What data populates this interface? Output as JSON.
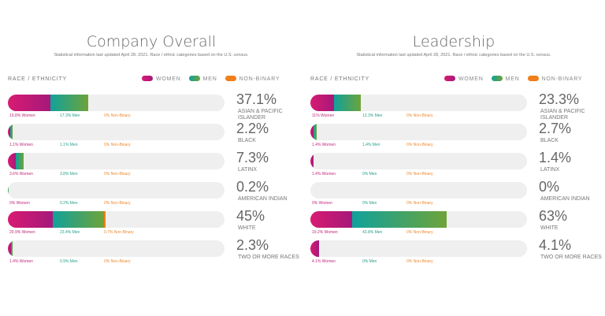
{
  "legend": {
    "header": "RACE / ETHNICITY",
    "women": "WOMEN",
    "men": "MEN",
    "nonbinary": "NON-BINARY",
    "colors": {
      "women": "#c2187a",
      "men": "#2aa37a",
      "nonbinary": "#f07f1a"
    }
  },
  "chart_data": [
    {
      "type": "bar",
      "title": "Company Overall",
      "subtitle": "Statistical information last updated April 28, 2021. Race / ethnic categories based on the U.S. census.",
      "rows": [
        {
          "total": "37.1%",
          "category": "ASIAN & PACIFIC ISLANDER",
          "women": 19.8,
          "men": 17.3,
          "nonbinary": 0,
          "women_label": "19.8% Women",
          "men_label": "17.3% Men",
          "nonbinary_label": "0% Non-Binary"
        },
        {
          "total": "2.2%",
          "category": "BLACK",
          "women": 1.1,
          "men": 1.1,
          "nonbinary": 0,
          "women_label": "1.1% Women",
          "men_label": "1.1% Men",
          "nonbinary_label": "0% Non-Binary"
        },
        {
          "total": "7.3%",
          "category": "LATINX",
          "women": 3.6,
          "men": 3.8,
          "nonbinary": 0,
          "women_label": "3.6% Women",
          "men_label": "3.8% Men",
          "nonbinary_label": "0% Non-Binary"
        },
        {
          "total": "0.2%",
          "category": "AMERICAN INDIAN",
          "women": 0,
          "men": 0.2,
          "nonbinary": 0,
          "women_label": "0% Women",
          "men_label": "0.2% Men",
          "nonbinary_label": "0% Non-Binary"
        },
        {
          "total": "45%",
          "category": "WHITE",
          "women": 20.9,
          "men": 23.4,
          "nonbinary": 0.7,
          "women_label": "20.9% Women",
          "men_label": "23.4% Men",
          "nonbinary_label": "0.7% Non-Binary"
        },
        {
          "total": "2.3%",
          "category": "TWO OR MORE RACES",
          "women": 1.4,
          "men": 0.9,
          "nonbinary": 0,
          "women_label": "1.4% Women",
          "men_label": "0.9% Men",
          "nonbinary_label": "0% Non-Binary"
        }
      ]
    },
    {
      "type": "bar",
      "title": "Leadership",
      "subtitle": "Statistical information last updated April 28, 2021. Race / ethnic categories based on the U.S. census.",
      "rows": [
        {
          "total": "23.3%",
          "category": "ASIAN & PACIFIC ISLANDER",
          "women": 11,
          "men": 12.3,
          "nonbinary": 0,
          "women_label": "11% Women",
          "men_label": "12.3% Men",
          "nonbinary_label": "0% Non-Binary"
        },
        {
          "total": "2.7%",
          "category": "BLACK",
          "women": 1.4,
          "men": 1.4,
          "nonbinary": 0,
          "women_label": "1.4% Women",
          "men_label": "1.4% Men",
          "nonbinary_label": "0% Non-Binary"
        },
        {
          "total": "1.4%",
          "category": "LATINX",
          "women": 1.4,
          "men": 0,
          "nonbinary": 0,
          "women_label": "1.4% Women",
          "men_label": "0% Men",
          "nonbinary_label": "0% Non-Binary"
        },
        {
          "total": "0%",
          "category": "AMERICAN INDIAN",
          "women": 0,
          "men": 0,
          "nonbinary": 0,
          "women_label": "0% Women",
          "men_label": "0% Men",
          "nonbinary_label": "0% Non-Binary"
        },
        {
          "total": "63%",
          "category": "WHITE",
          "women": 19.2,
          "men": 43.8,
          "nonbinary": 0,
          "women_label": "19.2% Women",
          "men_label": "43.8% Men",
          "nonbinary_label": "0% Non-Binary"
        },
        {
          "total": "4.1%",
          "category": "TWO OR MORE RACES",
          "women": 4.1,
          "men": 0,
          "nonbinary": 0,
          "women_label": "4.1% Women",
          "men_label": "0% Men",
          "nonbinary_label": "0% Non-Binary"
        }
      ]
    }
  ]
}
